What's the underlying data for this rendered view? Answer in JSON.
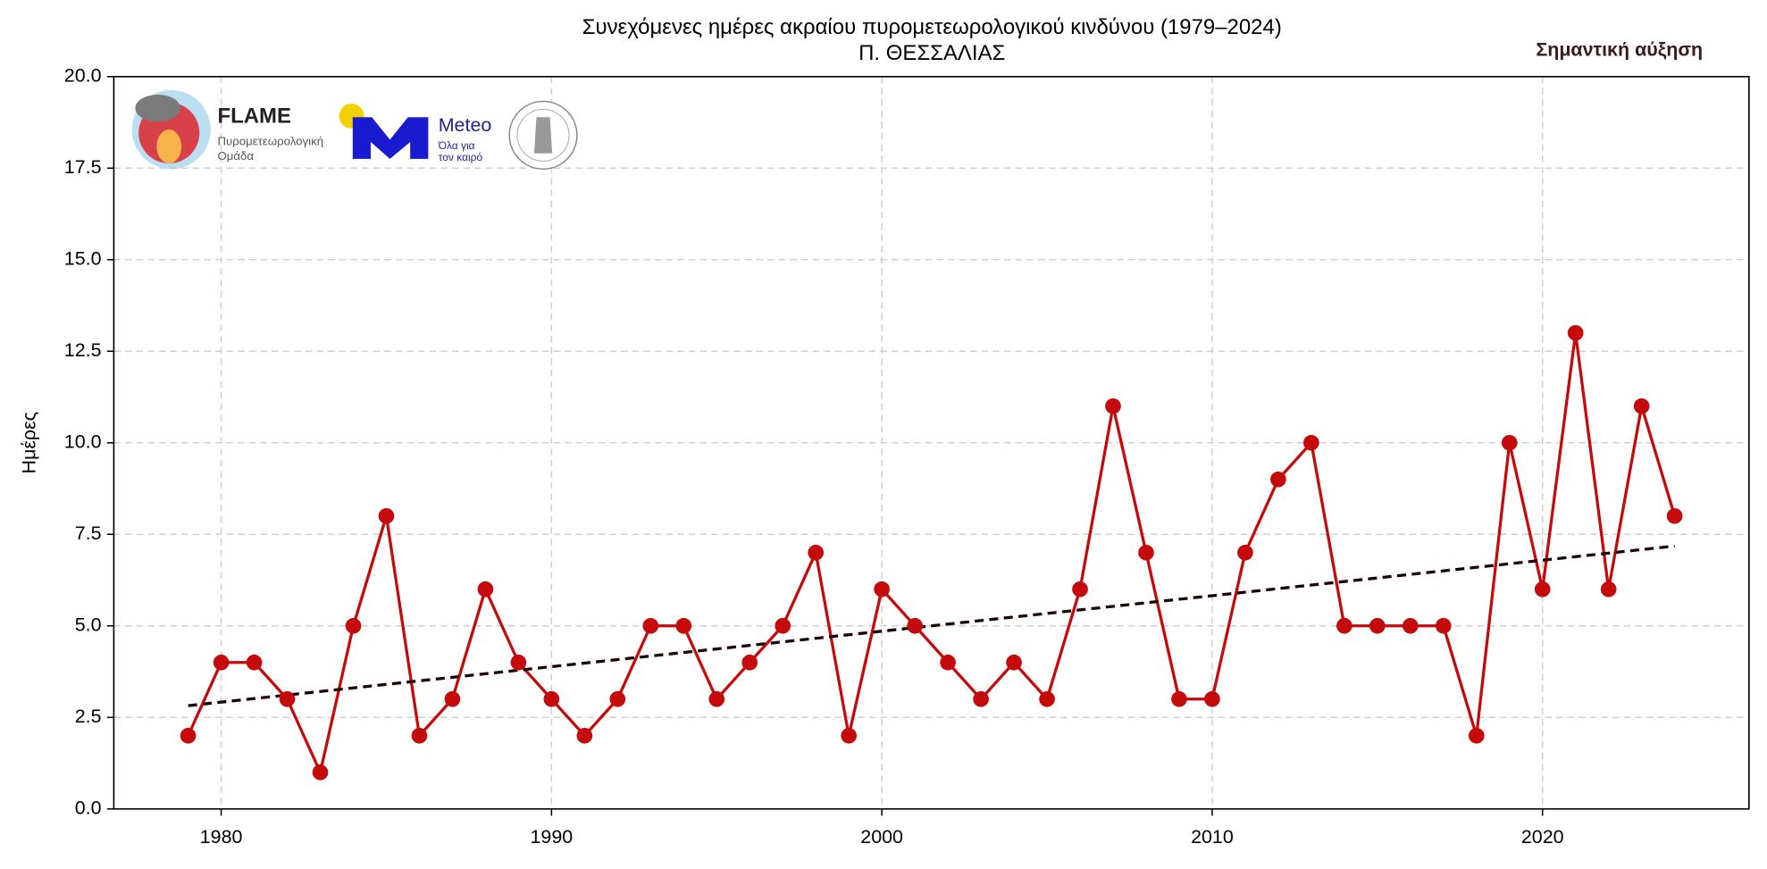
{
  "chart_data": {
    "type": "line",
    "title": "Συνεχόμενες ημέρες ακραίου πυρομετεωρολογικού κινδύνου (1979–2024)",
    "subtitle": "Π. ΘΕΣΣΑΛΙΑΣ",
    "y_label": "Ημέρες",
    "annotation": "Σημαντική αύξηση",
    "logos": {
      "flame": "FLAME",
      "flame_line1": "Πυρομετεωρολογική",
      "flame_line2": "Ομάδα",
      "meteo": "Meteo",
      "meteo_line1": "Όλα για",
      "meteo_line2": "τον καιρό"
    },
    "x": [
      1979,
      1980,
      1981,
      1982,
      1983,
      1984,
      1985,
      1986,
      1987,
      1988,
      1989,
      1990,
      1991,
      1992,
      1993,
      1994,
      1995,
      1996,
      1997,
      1998,
      1999,
      2000,
      2001,
      2002,
      2003,
      2004,
      2005,
      2006,
      2007,
      2008,
      2009,
      2010,
      2011,
      2012,
      2013,
      2014,
      2015,
      2016,
      2017,
      2018,
      2019,
      2020,
      2021,
      2022,
      2023,
      2024
    ],
    "series": [
      {
        "color": "#c40a0a",
        "values": [
          2,
          4,
          4,
          3,
          1,
          5,
          8,
          2,
          3,
          6,
          4,
          3,
          2,
          3,
          5,
          5,
          3,
          4,
          5,
          7,
          2,
          6,
          5,
          4,
          3,
          4,
          3,
          6,
          11,
          7,
          3,
          3,
          7,
          9,
          10,
          5,
          5,
          5,
          5,
          2,
          10,
          6,
          13,
          6,
          11,
          8
        ]
      }
    ],
    "trend": {
      "color": "#1a0000",
      "x": [
        1979,
        2024
      ],
      "values": [
        2.82,
        7.18
      ]
    },
    "xlim": [
      1976.75,
      2026.25
    ],
    "ylim": [
      0,
      20
    ],
    "xticks": [
      1980,
      1990,
      2000,
      2010,
      2020
    ],
    "yticks": [
      {
        "value": 0,
        "label": "0.0"
      },
      {
        "value": 2.5,
        "label": "2.5"
      },
      {
        "value": 5,
        "label": "5.0"
      },
      {
        "value": 7.5,
        "label": "7.5"
      },
      {
        "value": 10,
        "label": "10.0"
      },
      {
        "value": 12.5,
        "label": "12.5"
      },
      {
        "value": 15,
        "label": "15.0"
      },
      {
        "value": 17.5,
        "label": "17.5"
      },
      {
        "value": 20,
        "label": "20.0"
      }
    ],
    "grid": true
  }
}
